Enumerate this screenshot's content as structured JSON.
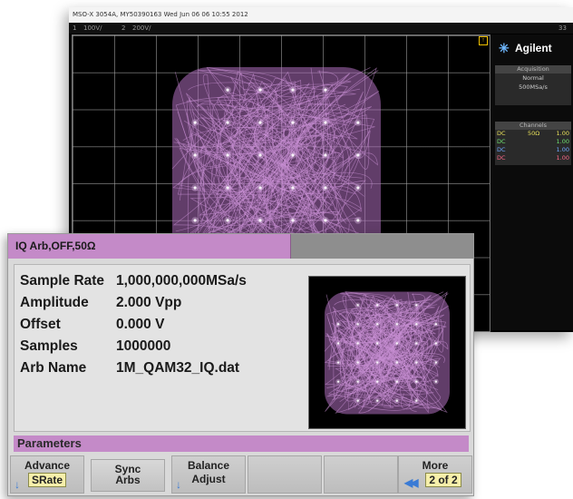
{
  "scope": {
    "header_text": "MSO-X 3054A, MY50390163 Wed Jun 06 06 10:55 2012",
    "channel_bar": {
      "ch1_num": "1",
      "ch1_val": "100V/",
      "ch2_num": "2",
      "ch2_val": "200V/"
    },
    "top_right_glyph": "33",
    "brand": "Agilent",
    "acquisition": {
      "header": "Acquisition",
      "mode": "Normal",
      "rate": "500MSa/s"
    },
    "channels": {
      "header": "Channels",
      "rows": [
        {
          "coupling": "DC",
          "imp": "50Ω",
          "scale": "1.00",
          "color": "#e8e05a"
        },
        {
          "coupling": "DC",
          "imp": "",
          "scale": "1.00",
          "color": "#6fe06f"
        },
        {
          "coupling": "DC",
          "imp": "",
          "scale": "1.00",
          "color": "#6fa8ff"
        },
        {
          "coupling": "DC",
          "imp": "",
          "scale": "1.00",
          "color": "#ff6a8a"
        }
      ]
    },
    "trace_color": "#b070c0"
  },
  "generator": {
    "title": "IQ Arb,OFF,50Ω",
    "parameters": [
      {
        "label": "Sample Rate",
        "value": "1,000,000,000MSa/s"
      },
      {
        "label": "Amplitude",
        "value": "2.000 Vpp"
      },
      {
        "label": "Offset",
        "value": "0.000 V"
      },
      {
        "label": "Samples",
        "value": "1000000"
      },
      {
        "label": "Arb Name",
        "value": "1M_QAM32_IQ.dat"
      }
    ],
    "params_bar": "Parameters",
    "softkeys": {
      "advance": {
        "line1": "Advance",
        "line2": "SRate"
      },
      "sync": {
        "line1": "Sync",
        "line2": "Arbs"
      },
      "balance": {
        "line1": "Balance",
        "line2": "Adjust"
      },
      "more": {
        "line1": "More",
        "line2": "2 of 2"
      }
    },
    "accent_color": "#c48ac8"
  }
}
